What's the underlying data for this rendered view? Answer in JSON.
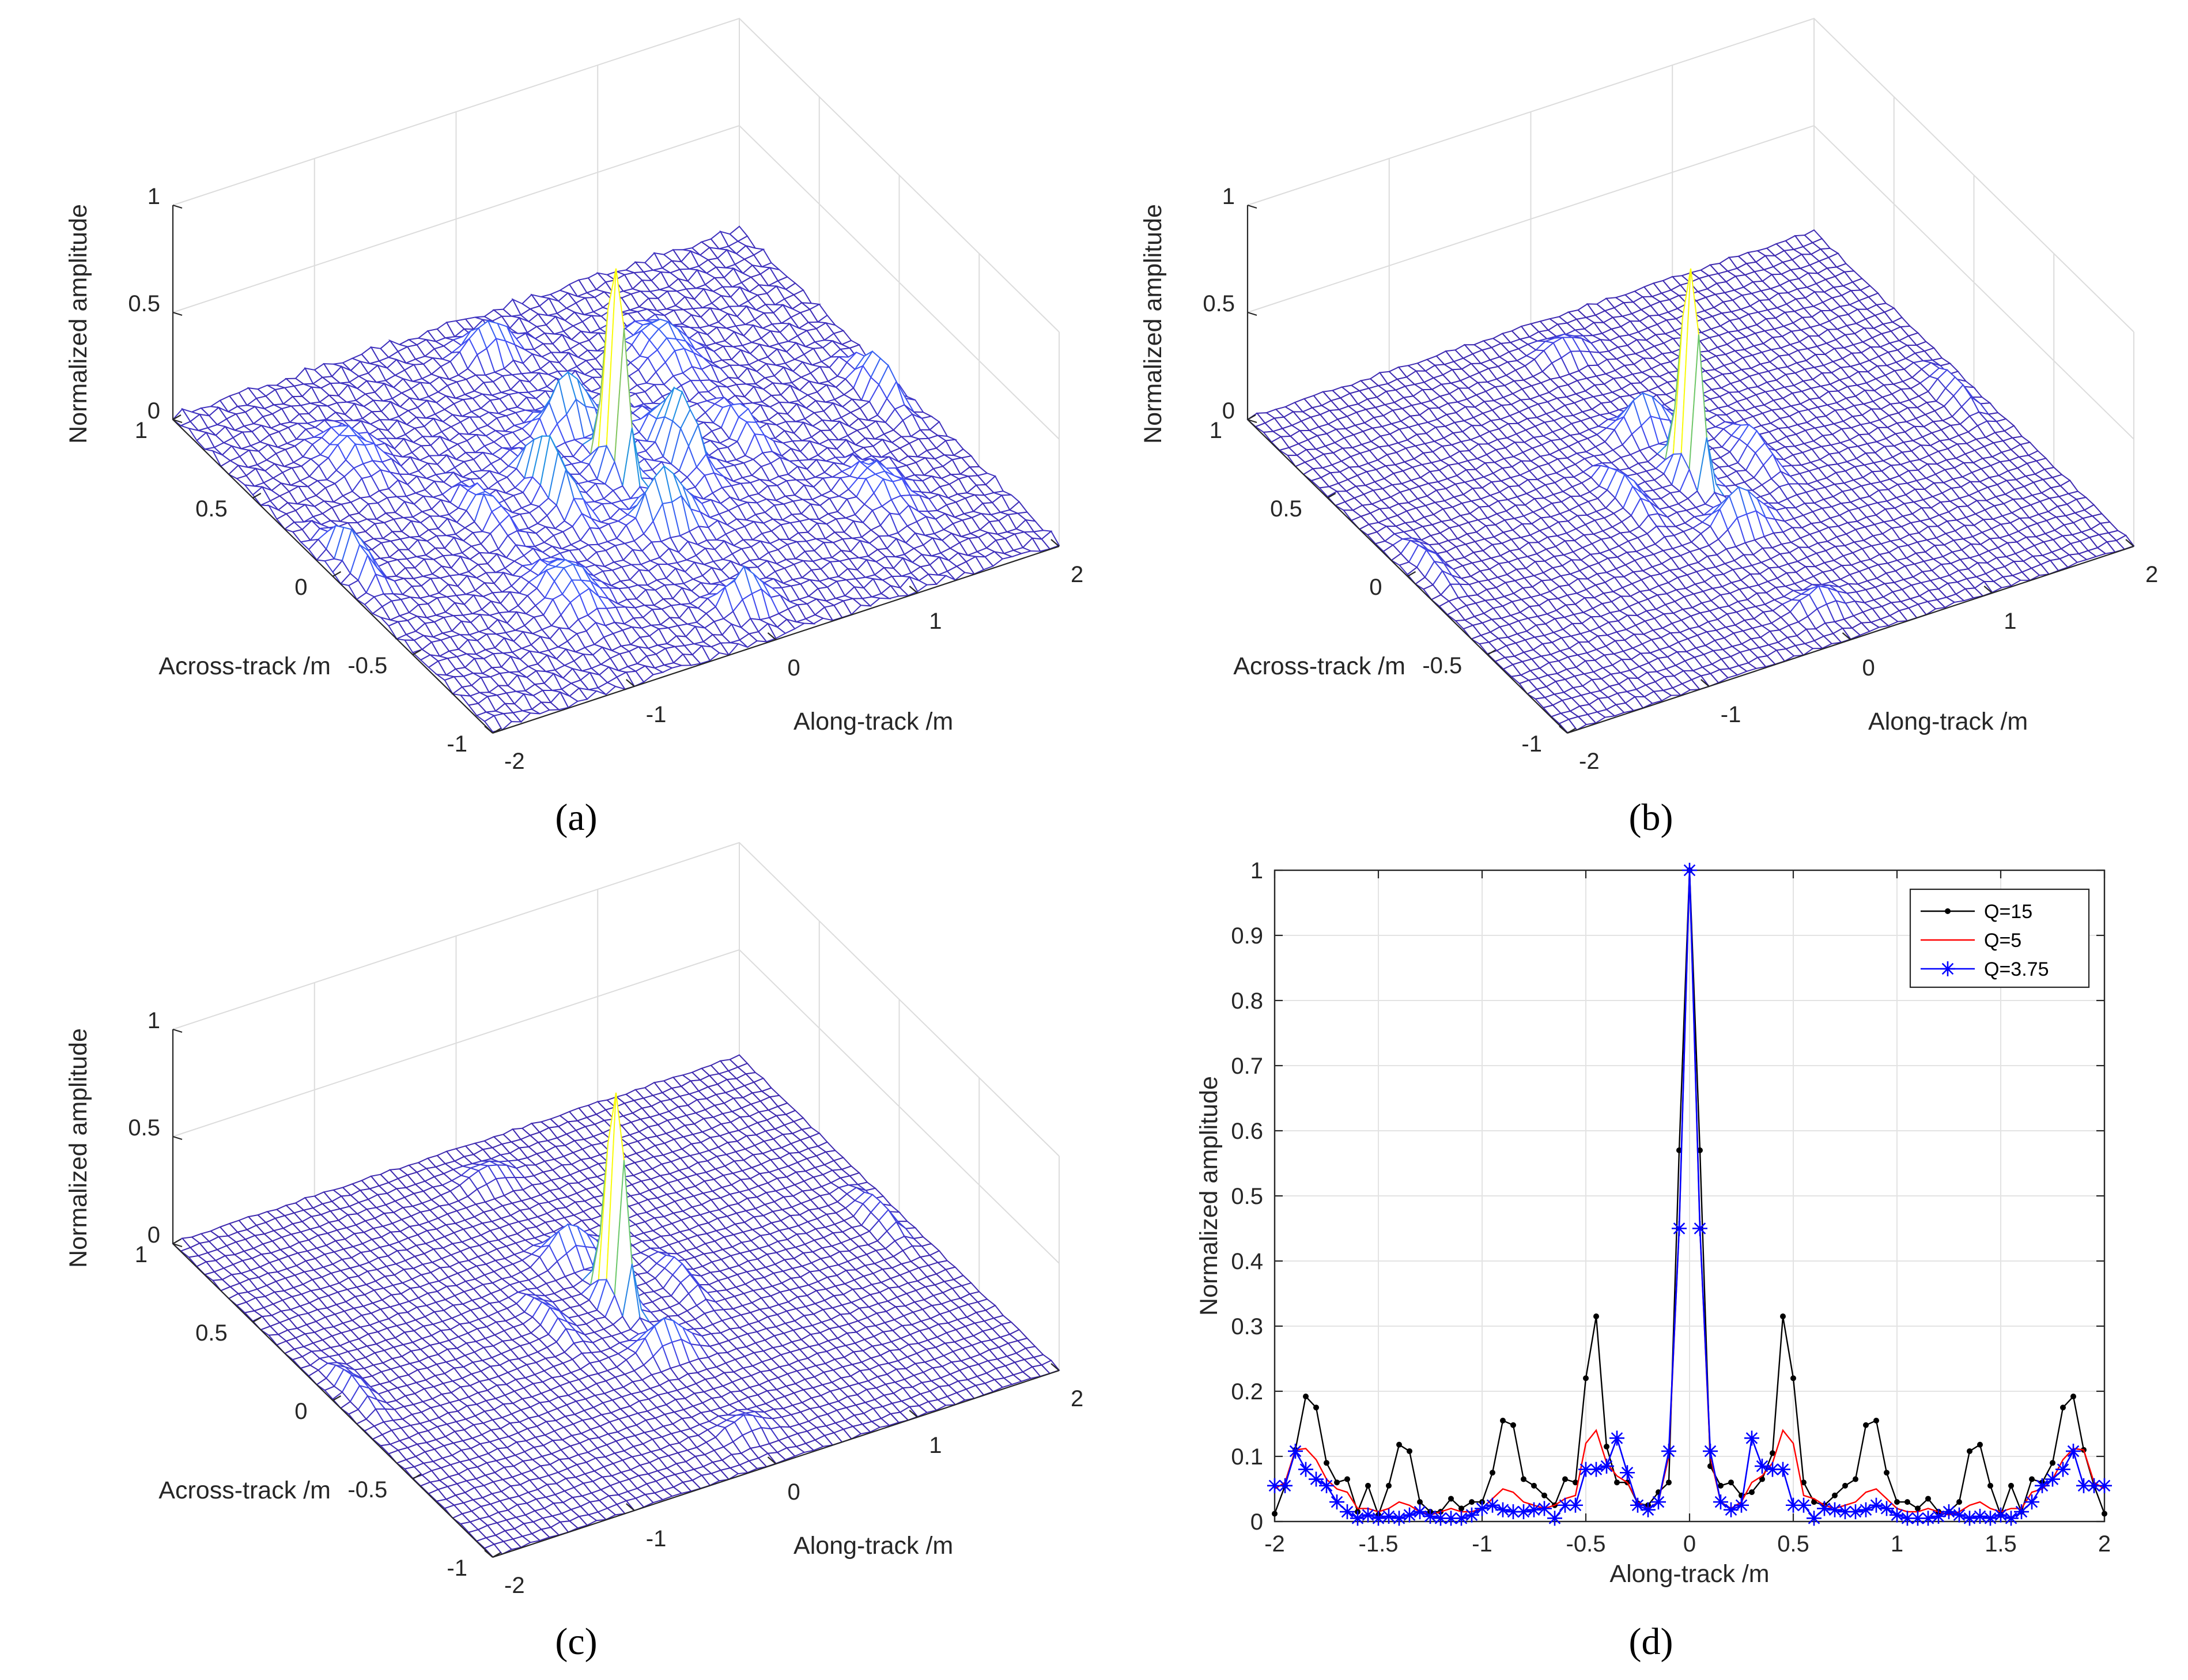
{
  "figure": {
    "captions": [
      "(a)",
      "(b)",
      "(c)",
      "(d)"
    ]
  },
  "chart_data": [
    {
      "type": "surface",
      "panel": "(a)",
      "zlabel": "Normalized amplitude",
      "xlabel": "Along-track /m",
      "ylabel": "Across-track /m",
      "ztick_labels": [
        "0",
        "0.5",
        "1"
      ],
      "xtick_labels": [
        "-2",
        "-1",
        "0",
        "1",
        "2"
      ],
      "ytick_labels": [
        "-1",
        "-0.5",
        "0",
        "0.5",
        "1"
      ],
      "xlim": [
        -2,
        2
      ],
      "ylim": [
        -1,
        1
      ],
      "zlim": [
        0,
        1
      ],
      "main_peak": {
        "x": 0,
        "y": 0,
        "z": 1.0
      },
      "sidelobes": [
        {
          "x": 0.45,
          "y": 0.0,
          "z": 0.32
        },
        {
          "x": -0.45,
          "y": 0.0,
          "z": 0.32
        },
        {
          "x": 0.0,
          "y": 0.3,
          "z": 0.28
        },
        {
          "x": 0.0,
          "y": -0.3,
          "z": 0.28
        },
        {
          "x": 1.85,
          "y": 0.0,
          "z": 0.2
        },
        {
          "x": -1.85,
          "y": 0.0,
          "z": 0.2
        },
        {
          "x": 0.0,
          "y": 0.8,
          "z": 0.18
        },
        {
          "x": 0.0,
          "y": -0.8,
          "z": 0.18
        },
        {
          "x": 0.9,
          "y": 0.0,
          "z": 0.15
        },
        {
          "x": -0.9,
          "y": 0.0,
          "z": 0.15
        },
        {
          "x": 0.9,
          "y": 0.5,
          "z": 0.17
        },
        {
          "x": -0.9,
          "y": -0.5,
          "z": 0.17
        },
        {
          "x": -1.3,
          "y": 0.5,
          "z": 0.14
        },
        {
          "x": 1.3,
          "y": -0.5,
          "z": 0.14
        }
      ],
      "mainlobe_width_m": 0.05
    },
    {
      "type": "surface",
      "panel": "(b)",
      "zlabel": "Normalized amplitude",
      "xlabel": "Along-track /m",
      "ylabel": "Across-track /m",
      "ztick_labels": [
        "0",
        "0.5",
        "1"
      ],
      "xtick_labels": [
        "-2",
        "-1",
        "0",
        "1",
        "2"
      ],
      "ytick_labels": [
        "-1",
        "-0.5",
        "0",
        "0.5",
        "1"
      ],
      "xlim": [
        -2,
        2
      ],
      "ylim": [
        -1,
        1
      ],
      "zlim": [
        0,
        1
      ],
      "main_peak": {
        "x": 0,
        "y": 0,
        "z": 1.0
      },
      "sidelobes": [
        {
          "x": 0.45,
          "y": 0.0,
          "z": 0.14
        },
        {
          "x": -0.45,
          "y": 0.0,
          "z": 0.14
        },
        {
          "x": 0.0,
          "y": 0.3,
          "z": 0.2
        },
        {
          "x": 0.0,
          "y": -0.3,
          "z": 0.2
        },
        {
          "x": 1.85,
          "y": 0.0,
          "z": 0.1
        },
        {
          "x": -1.85,
          "y": 0.0,
          "z": 0.1
        },
        {
          "x": 0.0,
          "y": 0.8,
          "z": 0.1
        },
        {
          "x": 0.0,
          "y": -0.8,
          "z": 0.1
        }
      ],
      "mainlobe_width_m": 0.05
    },
    {
      "type": "surface",
      "panel": "(c)",
      "zlabel": "Normalized amplitude",
      "xlabel": "Along-track /m",
      "ylabel": "Across-track /m",
      "ztick_labels": [
        "0",
        "0.5",
        "1"
      ],
      "xtick_labels": [
        "-2",
        "-1",
        "0",
        "1",
        "2"
      ],
      "ytick_labels": [
        "-1",
        "-0.5",
        "0",
        "0.5",
        "1"
      ],
      "xlim": [
        -2,
        2
      ],
      "ylim": [
        -1,
        1
      ],
      "zlim": [
        0,
        1
      ],
      "main_peak": {
        "x": 0,
        "y": 0,
        "z": 1.0
      },
      "sidelobes": [
        {
          "x": 0.45,
          "y": 0.0,
          "z": 0.1
        },
        {
          "x": -0.45,
          "y": 0.0,
          "z": 0.1
        },
        {
          "x": 0.0,
          "y": 0.3,
          "z": 0.17
        },
        {
          "x": 0.0,
          "y": -0.3,
          "z": 0.17
        },
        {
          "x": 1.85,
          "y": 0.0,
          "z": 0.1
        },
        {
          "x": -1.85,
          "y": 0.0,
          "z": 0.1
        },
        {
          "x": 0.0,
          "y": 0.8,
          "z": 0.08
        },
        {
          "x": 0.0,
          "y": -0.8,
          "z": 0.08
        }
      ],
      "mainlobe_width_m": 0.05
    },
    {
      "type": "line",
      "panel": "(d)",
      "xlabel": "Along-track /m",
      "ylabel": "Normalized amplitude",
      "xlim": [
        -2,
        2
      ],
      "ylim": [
        0,
        1
      ],
      "grid": true,
      "legend_position": "top-right",
      "xtick_labels": [
        "-2",
        "-1.5",
        "-1",
        "-0.5",
        "0",
        "0.5",
        "1",
        "1.5",
        "2"
      ],
      "ytick_labels": [
        "0",
        "0.1",
        "0.2",
        "0.3",
        "0.4",
        "0.5",
        "0.6",
        "0.7",
        "0.8",
        "0.9",
        "1"
      ],
      "x": [
        -2.0,
        -1.95,
        -1.9,
        -1.85,
        -1.8,
        -1.75,
        -1.7,
        -1.65,
        -1.6,
        -1.55,
        -1.5,
        -1.45,
        -1.4,
        -1.35,
        -1.3,
        -1.25,
        -1.2,
        -1.15,
        -1.1,
        -1.05,
        -1.0,
        -0.95,
        -0.9,
        -0.85,
        -0.8,
        -0.75,
        -0.7,
        -0.65,
        -0.6,
        -0.55,
        -0.5,
        -0.45,
        -0.4,
        -0.35,
        -0.3,
        -0.25,
        -0.2,
        -0.15,
        -0.1,
        -0.05,
        0.0,
        0.05,
        0.1,
        0.15,
        0.2,
        0.25,
        0.3,
        0.35,
        0.4,
        0.45,
        0.5,
        0.55,
        0.6,
        0.65,
        0.7,
        0.75,
        0.8,
        0.85,
        0.9,
        0.95,
        1.0,
        1.05,
        1.1,
        1.15,
        1.2,
        1.25,
        1.3,
        1.35,
        1.4,
        1.45,
        1.5,
        1.55,
        1.6,
        1.65,
        1.7,
        1.75,
        1.8,
        1.85,
        1.9,
        1.95,
        2.0
      ],
      "series": [
        {
          "name": "Q=15",
          "color": "#000000",
          "marker": "dot",
          "values": [
            0.012,
            0.055,
            0.11,
            0.192,
            0.175,
            0.09,
            0.06,
            0.065,
            0.015,
            0.055,
            0.01,
            0.055,
            0.118,
            0.108,
            0.03,
            0.015,
            0.015,
            0.035,
            0.02,
            0.03,
            0.03,
            0.075,
            0.155,
            0.148,
            0.065,
            0.055,
            0.04,
            0.025,
            0.065,
            0.06,
            0.22,
            0.315,
            0.115,
            0.06,
            0.06,
            0.028,
            0.025,
            0.045,
            0.06,
            0.57,
            1.0,
            0.57,
            0.085,
            0.055,
            0.06,
            0.04,
            0.045,
            0.065,
            0.105,
            0.315,
            0.22,
            0.06,
            0.03,
            0.025,
            0.04,
            0.055,
            0.065,
            0.148,
            0.155,
            0.075,
            0.03,
            0.03,
            0.02,
            0.035,
            0.015,
            0.015,
            0.03,
            0.108,
            0.118,
            0.055,
            0.01,
            0.055,
            0.015,
            0.065,
            0.06,
            0.09,
            0.175,
            0.192,
            0.11,
            0.055,
            0.012
          ]
        },
        {
          "name": "Q=5",
          "color": "#ff0000",
          "marker": "none",
          "values": [
            0.05,
            0.06,
            0.11,
            0.112,
            0.095,
            0.065,
            0.05,
            0.045,
            0.02,
            0.02,
            0.015,
            0.02,
            0.03,
            0.025,
            0.015,
            0.01,
            0.015,
            0.02,
            0.015,
            0.015,
            0.02,
            0.035,
            0.05,
            0.045,
            0.03,
            0.025,
            0.02,
            0.025,
            0.035,
            0.04,
            0.12,
            0.14,
            0.09,
            0.07,
            0.06,
            0.03,
            0.02,
            0.03,
            0.1,
            0.45,
            1.0,
            0.45,
            0.1,
            0.03,
            0.02,
            0.03,
            0.06,
            0.07,
            0.09,
            0.14,
            0.12,
            0.04,
            0.035,
            0.025,
            0.02,
            0.025,
            0.03,
            0.045,
            0.05,
            0.035,
            0.02,
            0.015,
            0.015,
            0.02,
            0.015,
            0.01,
            0.015,
            0.025,
            0.03,
            0.02,
            0.015,
            0.02,
            0.02,
            0.045,
            0.05,
            0.065,
            0.095,
            0.112,
            0.11,
            0.06,
            0.05
          ]
        },
        {
          "name": "Q=3.75",
          "color": "#0000ff",
          "marker": "asterisk",
          "values": [
            0.055,
            0.055,
            0.108,
            0.08,
            0.065,
            0.055,
            0.03,
            0.015,
            0.005,
            0.01,
            0.005,
            0.008,
            0.005,
            0.01,
            0.015,
            0.008,
            0.005,
            0.005,
            0.005,
            0.01,
            0.02,
            0.025,
            0.018,
            0.015,
            0.015,
            0.018,
            0.02,
            0.005,
            0.025,
            0.025,
            0.08,
            0.08,
            0.085,
            0.128,
            0.075,
            0.025,
            0.018,
            0.03,
            0.108,
            0.45,
            1.0,
            0.45,
            0.108,
            0.03,
            0.018,
            0.025,
            0.128,
            0.085,
            0.08,
            0.08,
            0.025,
            0.025,
            0.005,
            0.02,
            0.018,
            0.015,
            0.015,
            0.018,
            0.025,
            0.02,
            0.01,
            0.005,
            0.005,
            0.005,
            0.008,
            0.015,
            0.01,
            0.005,
            0.008,
            0.005,
            0.01,
            0.005,
            0.015,
            0.03,
            0.055,
            0.065,
            0.08,
            0.108,
            0.055,
            0.055,
            0.055
          ]
        }
      ]
    }
  ]
}
